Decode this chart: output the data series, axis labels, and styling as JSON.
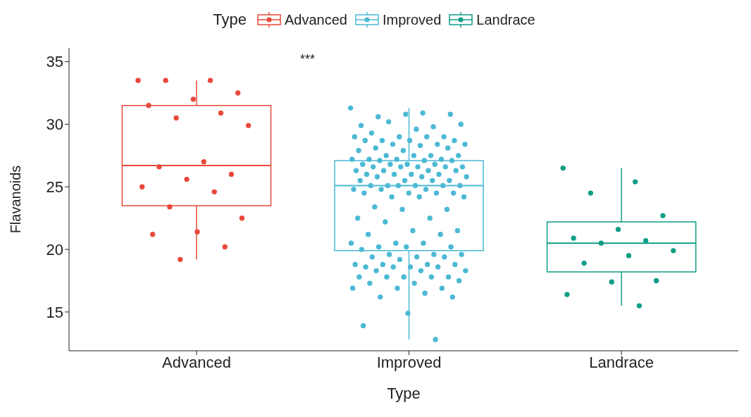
{
  "chart_data": {
    "type": "box",
    "xlabel": "Type",
    "ylabel": "Flavanoids",
    "legend_title": "Type",
    "legend": "top",
    "marker": "circle",
    "grid": false,
    "categories": [
      "Advanced",
      "Improved",
      "Landrace"
    ],
    "colors": [
      "#e8493a",
      "#4bb9d4",
      "#0f9e86"
    ],
    "boxes": [
      {
        "low": 19.2,
        "q1": 23.5,
        "median": 26.7,
        "q3": 31.5,
        "high": 33.5
      },
      {
        "low": 12.8,
        "q1": 19.9,
        "median": 25.1,
        "q3": 27.1,
        "high": 31.3
      },
      {
        "low": 15.5,
        "q1": 18.2,
        "median": 20.5,
        "q3": 22.2,
        "high": 26.5
      }
    ],
    "series": [
      {
        "type": "scatter",
        "name": "Advanced",
        "color": "#e8493a",
        "x": [
          "Advanced",
          "Advanced",
          "Advanced",
          "Advanced",
          "Advanced",
          "Advanced",
          "Advanced",
          "Advanced",
          "Advanced",
          "Advanced",
          "Advanced",
          "Advanced",
          "Advanced",
          "Advanced",
          "Advanced",
          "Advanced",
          "Advanced",
          "Advanced",
          "Advanced",
          "Advanced",
          "Advanced"
        ],
        "values": [
          33.5,
          33.5,
          33.5,
          32.5,
          32,
          31.5,
          30.9,
          30.5,
          29.9,
          27,
          26.6,
          26,
          25.6,
          25,
          24.6,
          23.4,
          22.5,
          21.4,
          21.2,
          20.2,
          19.2
        ]
      },
      {
        "type": "scatter",
        "name": "Improved",
        "color": "#4bb9d4",
        "x": [
          "Improved",
          "Improved",
          "Improved",
          "Improved",
          "Improved",
          "Improved",
          "Improved",
          "Improved",
          "Improved",
          "Improved",
          "Improved",
          "Improved",
          "Improved",
          "Improved",
          "Improved",
          "Improved",
          "Improved",
          "Improved",
          "Improved",
          "Improved",
          "Improved",
          "Improved",
          "Improved",
          "Improved",
          "Improved",
          "Improved",
          "Improved",
          "Improved",
          "Improved",
          "Improved",
          "Improved",
          "Improved",
          "Improved",
          "Improved",
          "Improved",
          "Improved",
          "Improved",
          "Improved",
          "Improved",
          "Improved",
          "Improved",
          "Improved",
          "Improved",
          "Improved",
          "Improved",
          "Improved",
          "Improved",
          "Improved",
          "Improved",
          "Improved",
          "Improved",
          "Improved",
          "Improved",
          "Improved",
          "Improved",
          "Improved",
          "Improved",
          "Improved",
          "Improved",
          "Improved",
          "Improved",
          "Improved",
          "Improved",
          "Improved",
          "Improved",
          "Improved",
          "Improved",
          "Improved",
          "Improved",
          "Improved",
          "Improved",
          "Improved",
          "Improved",
          "Improved",
          "Improved",
          "Improved",
          "Improved",
          "Improved",
          "Improved",
          "Improved",
          "Improved",
          "Improved",
          "Improved",
          "Improved",
          "Improved",
          "Improved",
          "Improved",
          "Improved",
          "Improved",
          "Improved",
          "Improved",
          "Improved",
          "Improved",
          "Improved",
          "Improved",
          "Improved",
          "Improved",
          "Improved",
          "Improved",
          "Improved",
          "Improved",
          "Improved",
          "Improved",
          "Improved",
          "Improved",
          "Improved",
          "Improved",
          "Improved",
          "Improved",
          "Improved",
          "Improved",
          "Improved",
          "Improved",
          "Improved",
          "Improved",
          "Improved",
          "Improved",
          "Improved",
          "Improved",
          "Improved",
          "Improved",
          "Improved",
          "Improved",
          "Improved",
          "Improved",
          "Improved",
          "Improved",
          "Improved",
          "Improved",
          "Improved"
        ],
        "values": [
          31.3,
          30.9,
          30.6,
          30.8,
          30.8,
          29.9,
          29.8,
          30.2,
          30.0,
          29.6,
          29.3,
          29.0,
          29.0,
          29.0,
          29.0,
          28.7,
          28.7,
          28.7,
          28.7,
          28.4,
          28.4,
          28.4,
          28.3,
          28.1,
          28.1,
          27.9,
          27.9,
          27.5,
          27.5,
          27.5,
          27.5,
          27.2,
          27.2,
          27.2,
          27.2,
          27.1,
          27.1,
          27.1,
          26.8,
          26.8,
          26.8,
          26.8,
          26.6,
          26.6,
          26.6,
          26.6,
          26.6,
          26.3,
          26.3,
          26.3,
          26.3,
          26.0,
          26.0,
          26.0,
          26.0,
          25.8,
          25.8,
          25.8,
          25.5,
          25.5,
          25.5,
          25.5,
          25.1,
          25.1,
          25.1,
          25.1,
          25.1,
          25.1,
          24.8,
          24.8,
          24.8,
          24.5,
          24.5,
          24.5,
          24.5,
          24.2,
          24.2,
          24.2,
          23.4,
          23.2,
          23.2,
          22.5,
          22.5,
          22.2,
          21.5,
          21.5,
          21.2,
          21.2,
          20.5,
          20.5,
          20.5,
          20.2,
          20.2,
          20.2,
          20.0,
          19.6,
          19.6,
          19.6,
          19.4,
          19.4,
          19.4,
          19.2,
          18.8,
          18.8,
          18.8,
          18.8,
          18.6,
          18.6,
          18.6,
          18.6,
          18.3,
          18.3,
          18.3,
          17.8,
          17.8,
          17.8,
          17.8,
          17.8,
          17.5,
          17.3,
          17.3,
          16.9,
          16.9,
          16.9,
          16.5,
          16.2,
          16.2,
          14.9,
          13.9,
          12.8
        ]
      },
      {
        "type": "scatter",
        "name": "Landrace",
        "color": "#0f9e86",
        "x": [
          "Landrace",
          "Landrace",
          "Landrace",
          "Landrace",
          "Landrace",
          "Landrace",
          "Landrace",
          "Landrace",
          "Landrace",
          "Landrace",
          "Landrace",
          "Landrace",
          "Landrace",
          "Landrace",
          "Landrace"
        ],
        "values": [
          26.5,
          25.4,
          24.5,
          22.7,
          21.6,
          20.9,
          20.7,
          20.5,
          19.9,
          19.5,
          18.9,
          17.5,
          17.4,
          16.4,
          15.5
        ]
      }
    ],
    "annotations": [
      "***"
    ],
    "ylim": [
      11.9,
      36.1
    ],
    "yticks": [
      15,
      20,
      25,
      30,
      35
    ]
  }
}
